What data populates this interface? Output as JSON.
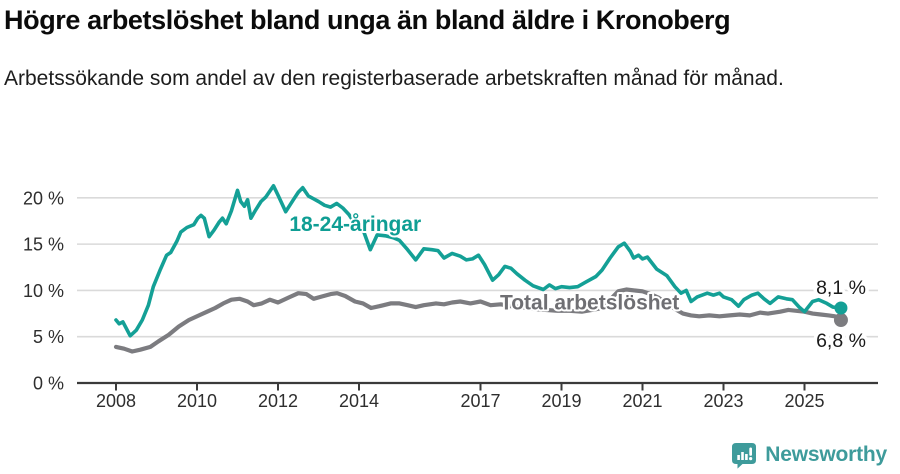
{
  "header": {
    "title": "Högre arbetslöshet bland unga än bland äldre i Kronoberg",
    "subtitle": "Arbetssökande som andel av den registerbaserade arbetskraften månad för månad."
  },
  "footer": {
    "brand": "Newsworthy"
  },
  "colors": {
    "young_line": "#14a096",
    "young_label": "#0f9e94",
    "total_line": "#7c7c80",
    "total_label": "#6f6f73",
    "grid": "#dadada",
    "axis": "#3a3a3a",
    "tick_label": "#2e2e2e",
    "end_label": "#1a1a1a",
    "logo": "#3e9b9b",
    "background": "#ffffff"
  },
  "chart_data": {
    "type": "line",
    "title": "Högre arbetslöshet bland unga än bland äldre i Kronoberg",
    "subtitle": "Arbetssökande som andel av den registerbaserade arbetskraften månad för månad.",
    "xlabel": "",
    "ylabel": "",
    "unit": "%",
    "grid": "horizontal",
    "legend_position": "inline-labels",
    "ylim": [
      0,
      22.5
    ],
    "xlim": [
      2008,
      2025.9
    ],
    "y_ticks": [
      {
        "v": 0,
        "label": "0 %"
      },
      {
        "v": 5,
        "label": "5 %"
      },
      {
        "v": 10,
        "label": "10 %"
      },
      {
        "v": 15,
        "label": "15 %"
      },
      {
        "v": 20,
        "label": "20 %"
      }
    ],
    "x_ticks": [
      {
        "v": 2008,
        "label": "2008"
      },
      {
        "v": 2010,
        "label": "2010"
      },
      {
        "v": 2012,
        "label": "2012"
      },
      {
        "v": 2014,
        "label": "2014"
      },
      {
        "v": 2017,
        "label": "2017"
      },
      {
        "v": 2019,
        "label": "2019"
      },
      {
        "v": 2021,
        "label": "2021"
      },
      {
        "v": 2023,
        "label": "2023"
      },
      {
        "v": 2025,
        "label": "2025"
      }
    ],
    "series": [
      {
        "name": "Total arbetslöshet",
        "color": "#7c7c80",
        "label_color": "#6f6f73",
        "stroke_width": 4.2,
        "dot_radius": 7,
        "label_pos": {
          "x": 2017.48,
          "y": 7.95
        },
        "end_label": "6,8 %",
        "end_value": 6.8,
        "end_label_offset": {
          "dx": 25,
          "dy": 27
        },
        "points": [
          [
            2008.0,
            3.9
          ],
          [
            2008.2,
            3.7
          ],
          [
            2008.4,
            3.4
          ],
          [
            2008.6,
            3.6
          ],
          [
            2008.85,
            3.9
          ],
          [
            2009.05,
            4.5
          ],
          [
            2009.3,
            5.2
          ],
          [
            2009.55,
            6.1
          ],
          [
            2009.8,
            6.8
          ],
          [
            2010.05,
            7.3
          ],
          [
            2010.25,
            7.7
          ],
          [
            2010.45,
            8.1
          ],
          [
            2010.65,
            8.6
          ],
          [
            2010.85,
            9.0
          ],
          [
            2011.05,
            9.1
          ],
          [
            2011.25,
            8.8
          ],
          [
            2011.4,
            8.4
          ],
          [
            2011.6,
            8.6
          ],
          [
            2011.8,
            9.0
          ],
          [
            2012.0,
            8.7
          ],
          [
            2012.3,
            9.3
          ],
          [
            2012.5,
            9.7
          ],
          [
            2012.7,
            9.6
          ],
          [
            2012.88,
            9.1
          ],
          [
            2013.05,
            9.3
          ],
          [
            2013.3,
            9.6
          ],
          [
            2013.46,
            9.7
          ],
          [
            2013.66,
            9.4
          ],
          [
            2013.9,
            8.8
          ],
          [
            2014.1,
            8.6
          ],
          [
            2014.3,
            8.1
          ],
          [
            2014.5,
            8.3
          ],
          [
            2014.78,
            8.6
          ],
          [
            2015.0,
            8.6
          ],
          [
            2015.2,
            8.4
          ],
          [
            2015.4,
            8.2
          ],
          [
            2015.6,
            8.4
          ],
          [
            2015.9,
            8.6
          ],
          [
            2016.1,
            8.5
          ],
          [
            2016.3,
            8.7
          ],
          [
            2016.5,
            8.8
          ],
          [
            2016.75,
            8.6
          ],
          [
            2017.0,
            8.8
          ],
          [
            2017.25,
            8.4
          ],
          [
            2017.5,
            8.5
          ],
          [
            2017.75,
            8.3
          ],
          [
            2018.0,
            8.2
          ],
          [
            2018.3,
            8.0
          ],
          [
            2018.6,
            7.9
          ],
          [
            2018.9,
            7.8
          ],
          [
            2019.2,
            7.8
          ],
          [
            2019.5,
            7.7
          ],
          [
            2019.75,
            7.9
          ],
          [
            2020.0,
            8.1
          ],
          [
            2020.2,
            9.0
          ],
          [
            2020.4,
            9.9
          ],
          [
            2020.6,
            10.1
          ],
          [
            2020.8,
            10.0
          ],
          [
            2021.0,
            9.9
          ],
          [
            2021.2,
            9.6
          ],
          [
            2021.4,
            9.2
          ],
          [
            2021.6,
            8.6
          ],
          [
            2021.8,
            8.0
          ],
          [
            2022.0,
            7.5
          ],
          [
            2022.2,
            7.3
          ],
          [
            2022.4,
            7.2
          ],
          [
            2022.65,
            7.3
          ],
          [
            2022.9,
            7.2
          ],
          [
            2023.15,
            7.3
          ],
          [
            2023.4,
            7.4
          ],
          [
            2023.65,
            7.3
          ],
          [
            2023.9,
            7.6
          ],
          [
            2024.1,
            7.5
          ],
          [
            2024.4,
            7.7
          ],
          [
            2024.6,
            7.9
          ],
          [
            2024.8,
            7.8
          ],
          [
            2025.0,
            7.7
          ],
          [
            2025.2,
            7.5
          ],
          [
            2025.4,
            7.4
          ],
          [
            2025.6,
            7.3
          ],
          [
            2025.75,
            7.2
          ],
          [
            2025.9,
            6.8
          ]
        ]
      },
      {
        "name": "18-24-åringar",
        "color": "#14a096",
        "label_color": "#0f9e94",
        "stroke_width": 3.6,
        "dot_radius": 6.5,
        "label_pos": {
          "x": 2012.28,
          "y": 16.4
        },
        "end_label": "8,1 %",
        "end_value": 8.1,
        "end_label_offset": {
          "dx": 25,
          "dy": -14
        },
        "points": [
          [
            2008.0,
            6.8
          ],
          [
            2008.08,
            6.4
          ],
          [
            2008.17,
            6.6
          ],
          [
            2008.35,
            5.1
          ],
          [
            2008.5,
            5.7
          ],
          [
            2008.65,
            6.8
          ],
          [
            2008.8,
            8.4
          ],
          [
            2008.92,
            10.4
          ],
          [
            2009.1,
            12.3
          ],
          [
            2009.25,
            13.8
          ],
          [
            2009.35,
            14.1
          ],
          [
            2009.5,
            15.3
          ],
          [
            2009.6,
            16.3
          ],
          [
            2009.75,
            16.8
          ],
          [
            2009.92,
            17.1
          ],
          [
            2010.02,
            17.8
          ],
          [
            2010.1,
            18.1
          ],
          [
            2010.18,
            17.8
          ],
          [
            2010.3,
            15.8
          ],
          [
            2010.42,
            16.5
          ],
          [
            2010.55,
            17.4
          ],
          [
            2010.63,
            17.8
          ],
          [
            2010.72,
            17.2
          ],
          [
            2010.85,
            18.6
          ],
          [
            2011.0,
            20.8
          ],
          [
            2011.08,
            19.6
          ],
          [
            2011.17,
            19.1
          ],
          [
            2011.25,
            19.8
          ],
          [
            2011.33,
            17.8
          ],
          [
            2011.45,
            18.7
          ],
          [
            2011.58,
            19.6
          ],
          [
            2011.7,
            20.1
          ],
          [
            2011.89,
            21.3
          ],
          [
            2012.0,
            20.3
          ],
          [
            2012.19,
            18.5
          ],
          [
            2012.38,
            19.8
          ],
          [
            2012.5,
            20.6
          ],
          [
            2012.61,
            21.1
          ],
          [
            2012.75,
            20.2
          ],
          [
            2012.88,
            19.9
          ],
          [
            2013.0,
            19.6
          ],
          [
            2013.15,
            19.2
          ],
          [
            2013.3,
            19.0
          ],
          [
            2013.45,
            19.4
          ],
          [
            2013.6,
            18.9
          ],
          [
            2013.75,
            18.2
          ],
          [
            2013.9,
            17.2
          ],
          [
            2014.0,
            16.8
          ],
          [
            2014.12,
            16.3
          ],
          [
            2014.28,
            14.4
          ],
          [
            2014.45,
            16.0
          ],
          [
            2014.65,
            15.9
          ],
          [
            2014.85,
            15.7
          ],
          [
            2015.0,
            15.4
          ],
          [
            2015.2,
            14.4
          ],
          [
            2015.4,
            13.3
          ],
          [
            2015.6,
            14.5
          ],
          [
            2015.8,
            14.4
          ],
          [
            2015.95,
            14.3
          ],
          [
            2016.1,
            13.5
          ],
          [
            2016.3,
            14.0
          ],
          [
            2016.5,
            13.7
          ],
          [
            2016.65,
            13.3
          ],
          [
            2016.8,
            13.4
          ],
          [
            2016.95,
            13.8
          ],
          [
            2017.1,
            12.8
          ],
          [
            2017.3,
            11.1
          ],
          [
            2017.45,
            11.7
          ],
          [
            2017.6,
            12.6
          ],
          [
            2017.75,
            12.4
          ],
          [
            2017.9,
            11.8
          ],
          [
            2018.1,
            11.1
          ],
          [
            2018.3,
            10.5
          ],
          [
            2018.55,
            10.1
          ],
          [
            2018.7,
            10.6
          ],
          [
            2018.85,
            10.2
          ],
          [
            2019.0,
            10.4
          ],
          [
            2019.2,
            10.3
          ],
          [
            2019.4,
            10.4
          ],
          [
            2019.6,
            10.9
          ],
          [
            2019.85,
            11.5
          ],
          [
            2020.0,
            12.2
          ],
          [
            2020.2,
            13.5
          ],
          [
            2020.4,
            14.7
          ],
          [
            2020.55,
            15.1
          ],
          [
            2020.7,
            14.2
          ],
          [
            2020.78,
            13.5
          ],
          [
            2020.9,
            13.8
          ],
          [
            2021.0,
            13.4
          ],
          [
            2021.12,
            13.6
          ],
          [
            2021.35,
            12.3
          ],
          [
            2021.6,
            11.6
          ],
          [
            2021.8,
            10.4
          ],
          [
            2021.95,
            9.7
          ],
          [
            2022.08,
            10.0
          ],
          [
            2022.2,
            8.8
          ],
          [
            2022.35,
            9.3
          ],
          [
            2022.6,
            9.7
          ],
          [
            2022.75,
            9.5
          ],
          [
            2022.9,
            9.7
          ],
          [
            2023.0,
            9.3
          ],
          [
            2023.2,
            9.0
          ],
          [
            2023.37,
            8.3
          ],
          [
            2023.5,
            9.0
          ],
          [
            2023.7,
            9.5
          ],
          [
            2023.85,
            9.7
          ],
          [
            2024.0,
            9.1
          ],
          [
            2024.15,
            8.6
          ],
          [
            2024.35,
            9.3
          ],
          [
            2024.55,
            9.1
          ],
          [
            2024.7,
            9.0
          ],
          [
            2024.87,
            8.2
          ],
          [
            2025.0,
            7.7
          ],
          [
            2025.2,
            8.8
          ],
          [
            2025.35,
            9.0
          ],
          [
            2025.55,
            8.6
          ],
          [
            2025.7,
            8.2
          ],
          [
            2025.9,
            8.1
          ]
        ]
      }
    ]
  }
}
